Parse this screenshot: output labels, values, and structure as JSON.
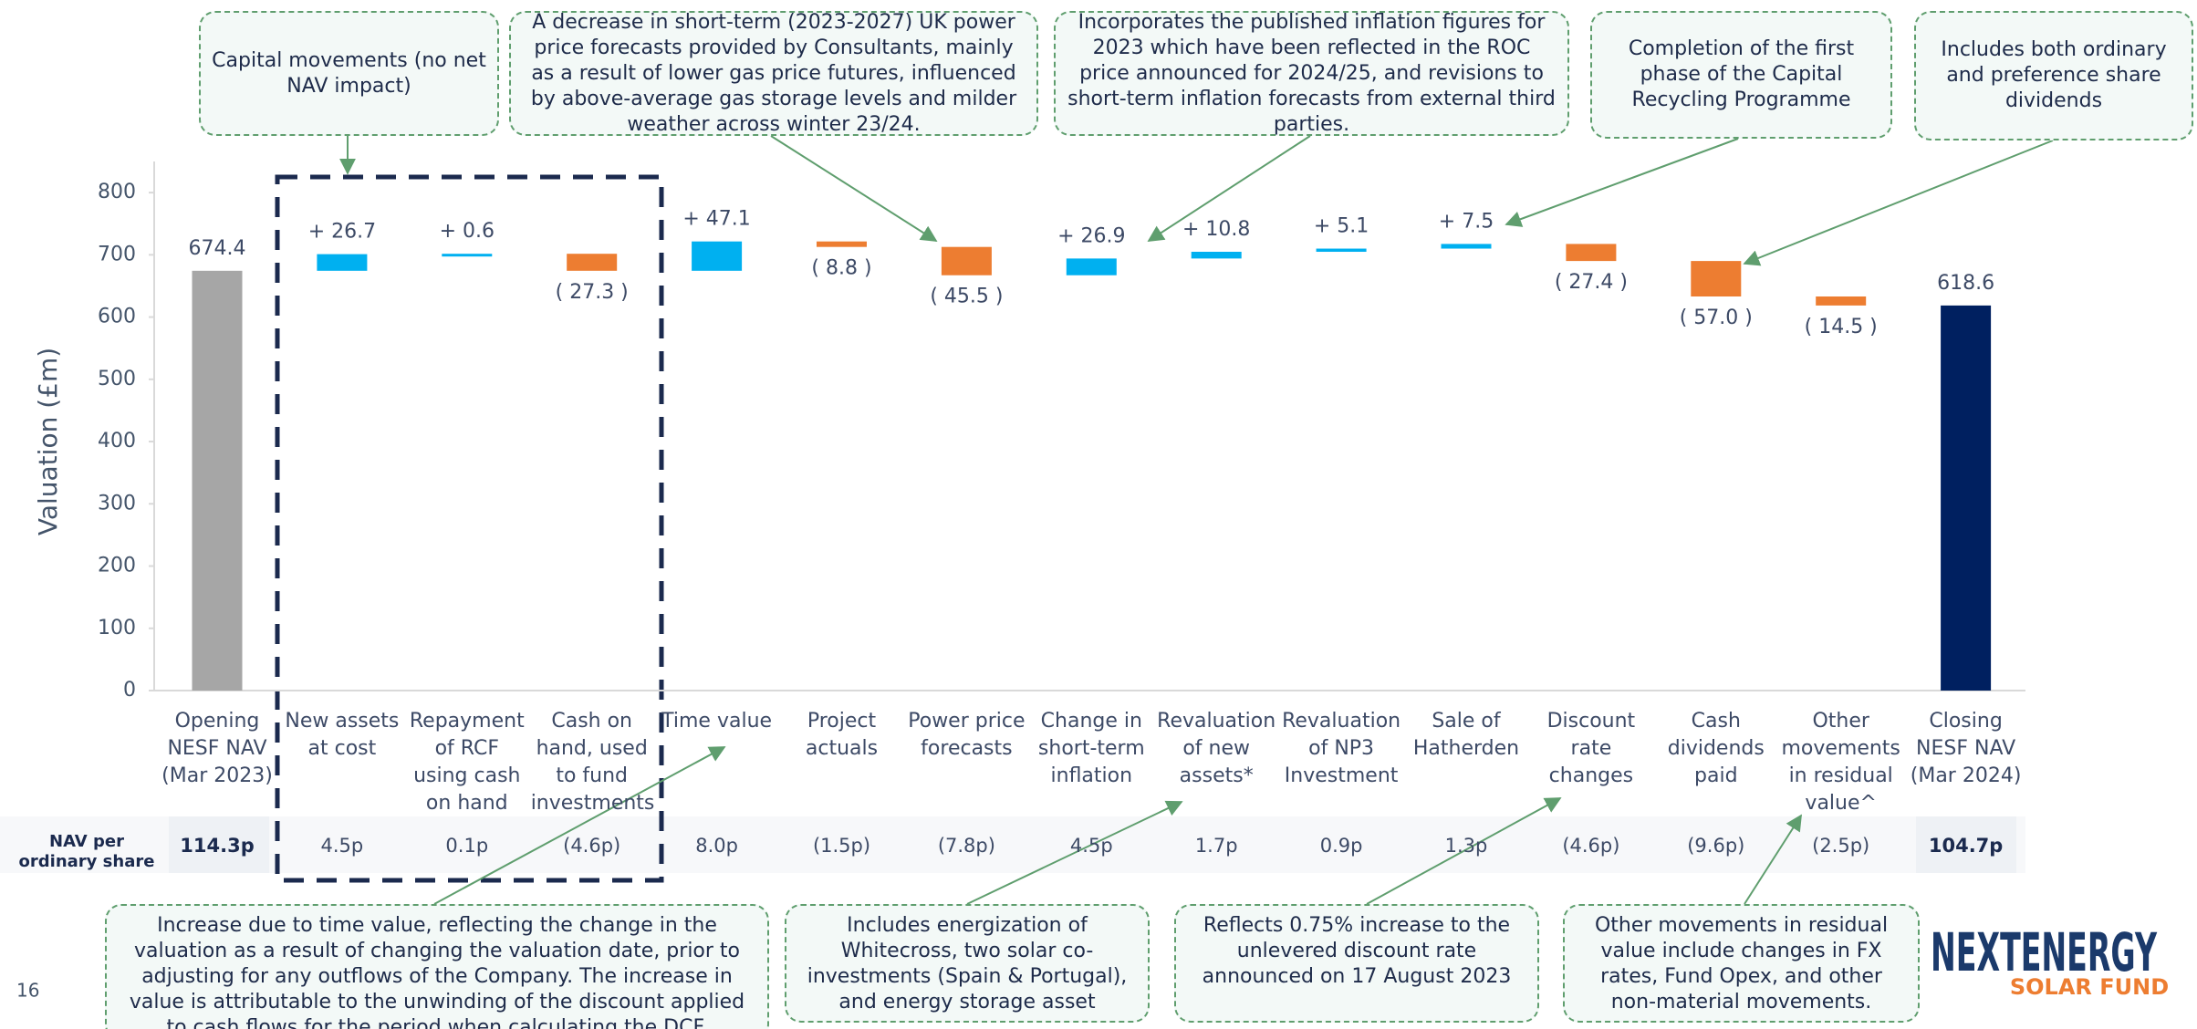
{
  "chart_data": {
    "type": "waterfall",
    "y_label": "Valuation  (£m)",
    "categories": [
      "Opening NESF NAV (Mar 2023)",
      "New assets at cost",
      "Repayment of RCF using cash on hand",
      "Cash on hand, used to fund investments",
      "Time value",
      "Project actuals",
      "Power price forecasts",
      "Change in short-term inflation",
      "Revaluation of new assets*",
      "Revaluation of NP3 Investment",
      "Sale of Hatherden",
      "Discount rate changes",
      "Cash dividends paid",
      "Other movements in residual value^",
      "Closing NESF NAV (Mar 2024)"
    ],
    "values": [
      674.4,
      26.7,
      0.6,
      -27.3,
      47.1,
      -8.8,
      -45.5,
      26.9,
      10.8,
      5.1,
      7.5,
      -27.4,
      -57.0,
      -14.5,
      618.6
    ],
    "value_labels": [
      "674.4",
      "+ 26.7",
      "+ 0.6",
      "( 27.3 )",
      "+ 47.1",
      "( 8.8 )",
      "( 45.5 )",
      "+ 26.9",
      "+ 10.8",
      "+ 5.1",
      "+ 7.5",
      "( 27.4 )",
      "( 57.0 )",
      "( 14.5 )",
      "618.6"
    ],
    "is_total": [
      true,
      false,
      false,
      false,
      false,
      false,
      false,
      false,
      false,
      false,
      false,
      false,
      false,
      false,
      true
    ],
    "colors": [
      "#a6a6a6",
      "#00b0f0",
      "#00b0f0",
      "#ed7d31",
      "#00b0f0",
      "#ed7d31",
      "#ed7d31",
      "#00b0f0",
      "#00b0f0",
      "#00b0f0",
      "#00b0f0",
      "#ed7d31",
      "#ed7d31",
      "#ed7d31",
      "#002060"
    ],
    "ylim": [
      0,
      850
    ],
    "yticks": [
      0,
      100,
      200,
      300,
      400,
      500,
      600,
      700,
      800
    ],
    "grid": false,
    "nav_row": {
      "label": "NAV per ordinary share",
      "values": [
        "114.3p",
        "4.5p",
        "0.1p",
        "(4.6p)",
        "8.0p",
        "(1.5p)",
        "(7.8p)",
        "4.5p",
        "1.7p",
        "0.9p",
        "1.3p",
        "(4.6p)",
        "(9.6p)",
        "(2.5p)",
        "104.7p"
      ]
    },
    "annotations_top": [
      "Capital movements (no net NAV impact)",
      "A decrease in short-term (2023-2027) UK power price forecasts provided by Consultants, mainly as a result of lower gas price futures, influenced by above-average gas storage levels and milder weather across winter 23/24.",
      "Incorporates the published inflation figures for 2023 which have been reflected in the ROC price announced for 2024/25, and revisions to short-term inflation forecasts from external third parties.",
      "Completion of the first phase of the Capital Recycling Programme",
      "Includes both ordinary and preference share dividends"
    ],
    "annotations_bottom": [
      "Increase due to time value, reflecting the change in the valuation as a result of changing the valuation date, prior to adjusting for any outflows of the Company.  The increase in value is attributable to the unwinding of the discount applied to cash flows for the period when calculating the DCF.",
      "Includes energization of Whitecross, two solar co-investments (Spain & Portugal), and energy storage asset",
      "Reflects 0.75% increase to the unlevered discount rate announced on 17 August 2023",
      "Other movements in residual value include changes in FX rates, Fund Opex, and other non-material movements."
    ]
  },
  "page_number": "16",
  "logo": {
    "name": "NEXTENERGY",
    "sub": "SOLAR FUND"
  }
}
